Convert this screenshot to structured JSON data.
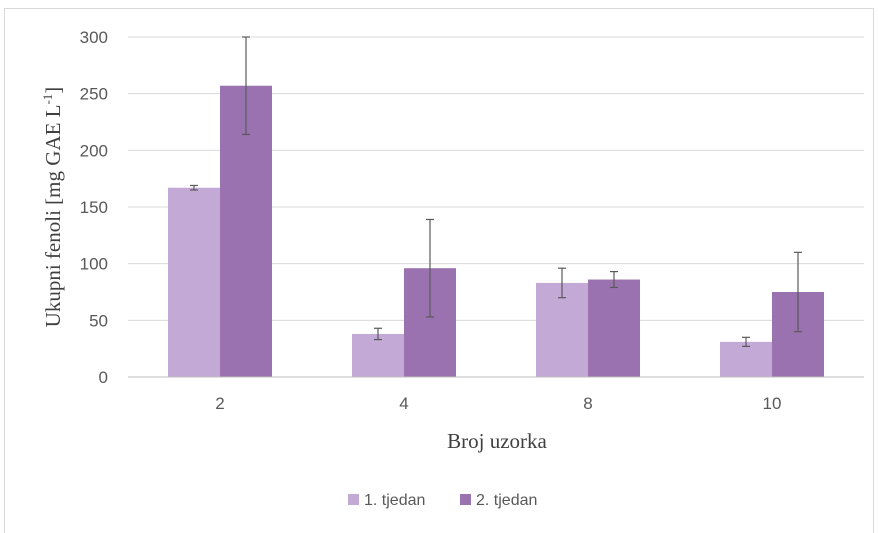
{
  "chart_data": {
    "type": "bar",
    "title": "",
    "xlabel": "Broj uzorka",
    "ylabel_main": "Ukupni fenoli [mg GAE L",
    "ylabel_sup": "-1",
    "ylabel_close": "]",
    "ylim": [
      0,
      300
    ],
    "yticks": [
      0,
      50,
      100,
      150,
      200,
      250,
      300
    ],
    "categories": [
      "2",
      "4",
      "8",
      "10"
    ],
    "series": [
      {
        "name": "1. tjedan",
        "color": "#c3a9d6",
        "values": [
          167,
          38,
          83,
          31
        ],
        "errors": [
          2,
          5,
          13,
          4
        ]
      },
      {
        "name": "2. tjedan",
        "color": "#9b72b0",
        "values": [
          257,
          96,
          86,
          75
        ],
        "errors": [
          43,
          43,
          7,
          35
        ]
      }
    ],
    "grid": true,
    "legend_position": "bottom"
  }
}
